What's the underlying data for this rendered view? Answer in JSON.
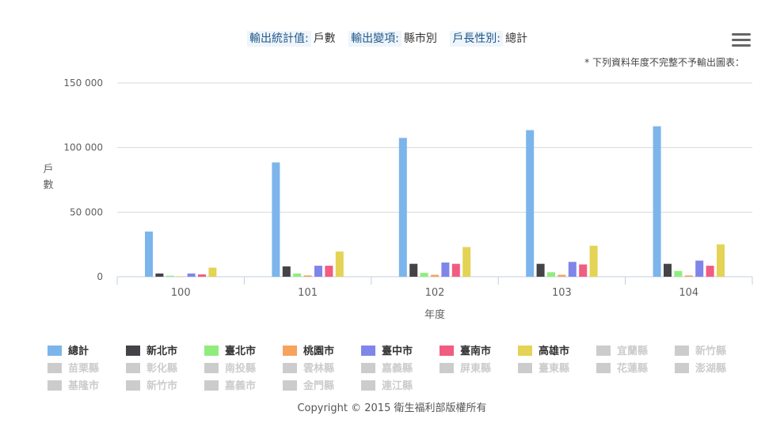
{
  "header": {
    "params": [
      {
        "label": "輸出統計值:",
        "value": "戶數"
      },
      {
        "label": "輸出變項:",
        "value": "縣市別"
      },
      {
        "label": "戶長性別:",
        "value": "總計"
      }
    ],
    "note": "* 下列資料年度不完整不予輸出圖表："
  },
  "menu": {
    "icon": "hamburger-menu-icon"
  },
  "chart_data": {
    "type": "bar",
    "title": "",
    "xlabel": "年度",
    "ylabel": "戶數",
    "ylim": [
      0,
      150000
    ],
    "yticks": [
      0,
      50000,
      100000,
      150000
    ],
    "ytick_labels": [
      "0",
      "50 000",
      "100 000",
      "150 000"
    ],
    "categories": [
      "100",
      "101",
      "102",
      "103",
      "104"
    ],
    "grid": true,
    "legend_position": "bottom",
    "series": [
      {
        "name": "總計",
        "color": "#7cb5ec",
        "visible": true,
        "values": [
          35000,
          88500,
          107500,
          113500,
          116500
        ]
      },
      {
        "name": "新北市",
        "color": "#434348",
        "visible": true,
        "values": [
          2500,
          8000,
          10000,
          10000,
          10000
        ]
      },
      {
        "name": "臺北市",
        "color": "#90ed7d",
        "visible": true,
        "values": [
          800,
          2500,
          3000,
          3500,
          4500
        ]
      },
      {
        "name": "桃園市",
        "color": "#f7a35c",
        "visible": true,
        "values": [
          300,
          1000,
          1500,
          1500,
          1000
        ]
      },
      {
        "name": "臺中市",
        "color": "#8085e9",
        "visible": true,
        "values": [
          2500,
          8500,
          11000,
          11500,
          12500
        ]
      },
      {
        "name": "臺南市",
        "color": "#f15c80",
        "visible": true,
        "values": [
          1800,
          8500,
          10000,
          9500,
          8500
        ]
      },
      {
        "name": "高雄市",
        "color": "#e4d354",
        "visible": true,
        "values": [
          7000,
          19500,
          23000,
          24000,
          25000
        ]
      }
    ],
    "hidden_series": [
      "宜蘭縣",
      "新竹縣",
      "苗栗縣",
      "彰化縣",
      "南投縣",
      "雲林縣",
      "嘉義縣",
      "屏東縣",
      "臺東縣",
      "花蓮縣",
      "澎湖縣",
      "基隆市",
      "新竹市",
      "嘉義市",
      "金門縣",
      "連江縣"
    ]
  },
  "footer": {
    "copyright": "Copyright © 2015 衛生福利部版權所有"
  }
}
